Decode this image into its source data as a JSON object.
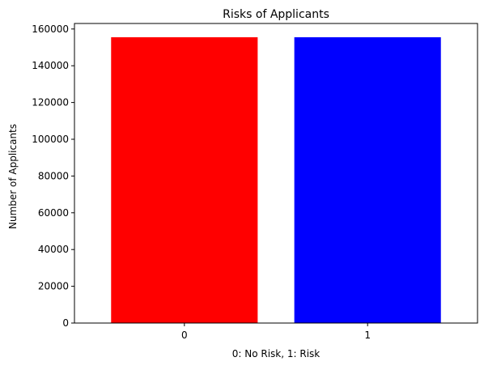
{
  "chart_data": {
    "type": "bar",
    "title": "Risks of Applicants",
    "xlabel": "0: No Risk, 1: Risk",
    "ylabel": "Number of Applicants",
    "categories": [
      "0",
      "1"
    ],
    "values": [
      155500,
      155500
    ],
    "bar_colors": [
      "#ff0000",
      "#0000ff"
    ],
    "ylim": [
      0,
      163000
    ],
    "yticks": [
      0,
      20000,
      40000,
      60000,
      80000,
      100000,
      120000,
      140000,
      160000
    ],
    "grid": false,
    "legend": "none"
  }
}
